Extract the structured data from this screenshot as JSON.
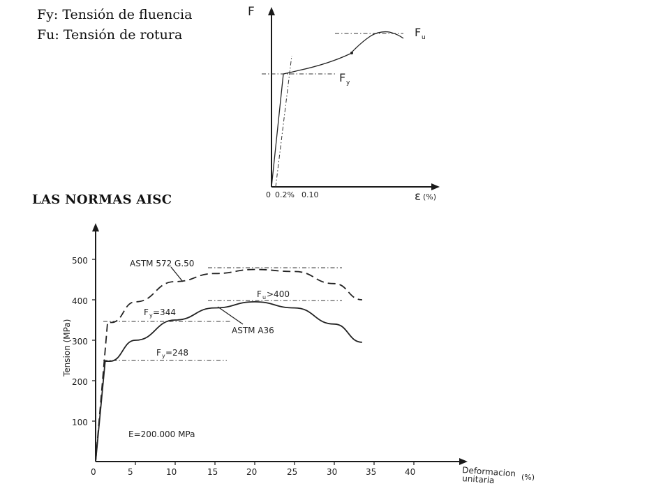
{
  "legend": {
    "fy": "Fy: Tensión de fluencia",
    "fu": "Fu: Tensión de rotura"
  },
  "section_title": "LAS NORMAS AISC",
  "chart_data": [
    {
      "type": "line",
      "axis_y_label": "F",
      "axis_x_label": "ε",
      "axis_x_unit": "(%)",
      "x_ticks": [
        "0",
        "0.2%",
        "0.10"
      ],
      "annotations": {
        "fu_main": "F",
        "fu_sub": "u",
        "fy_main": "F",
        "fy_sub": "y"
      },
      "series": [
        {
          "x": [
            0,
            0.02,
            0.06,
            0.11,
            0.16,
            0.21,
            0.24
          ],
          "y": [
            0,
            0.54,
            0.6,
            0.72,
            0.96,
            1.0,
            0.97
          ]
        }
      ]
    },
    {
      "type": "line",
      "ylabel": "Tension (MPa)",
      "xlabel_line1": "Deformacion",
      "xlabel_line2": "unitaria",
      "xunit": "(%)",
      "xlim": [
        0,
        40
      ],
      "ylim": [
        0,
        500
      ],
      "xticks": [
        "0",
        "5",
        "10",
        "15",
        "20",
        "25",
        "30",
        "35",
        "40"
      ],
      "yticks": [
        "100",
        "200",
        "300",
        "400",
        "500"
      ],
      "series": [
        {
          "name": "ASTM 572 G.50",
          "style": "dashed",
          "x": [
            0,
            1.5,
            2,
            5,
            10,
            15,
            20,
            25,
            30,
            33.5
          ],
          "y": [
            0,
            344,
            344,
            395,
            445,
            465,
            475,
            470,
            440,
            400
          ]
        },
        {
          "name": "ASTM A36",
          "style": "solid",
          "x": [
            0,
            1.2,
            1.8,
            5,
            10,
            15,
            20,
            25,
            30,
            33.5
          ],
          "y": [
            0,
            248,
            248,
            300,
            350,
            380,
            395,
            380,
            340,
            295
          ]
        }
      ],
      "annotations": {
        "fy344": "=344",
        "fy248": "=248",
        "fu400": ">400",
        "modulus": "E=200.000 MPa"
      }
    }
  ]
}
